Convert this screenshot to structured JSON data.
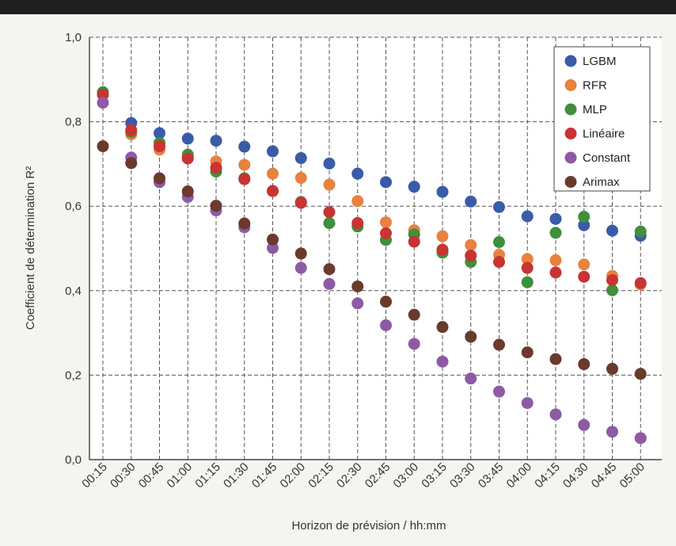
{
  "chart_data": {
    "type": "scatter",
    "xlabel": "Horizon de prévision / hh:mm",
    "ylabel": "Coefficient de détermination R²",
    "categories": [
      "00:15",
      "00:30",
      "00:45",
      "01:00",
      "01:15",
      "01:30",
      "01:45",
      "02:00",
      "02:15",
      "02:30",
      "02:45",
      "03:00",
      "03:15",
      "03:30",
      "03:45",
      "04:00",
      "04:15",
      "04:30",
      "04:45",
      "05:00"
    ],
    "ylim": [
      0.0,
      1.0
    ],
    "yticks": [
      "0,0",
      "0,2",
      "0,4",
      "0,6",
      "0,8",
      "1,0"
    ],
    "ytick_values": [
      0.0,
      0.2,
      0.4,
      0.6,
      0.8,
      1.0
    ],
    "grid": true,
    "legend_position": "top-right",
    "series": [
      {
        "name": "LGBM",
        "color": "#3a5ba8",
        "values": [
          0.868,
          0.797,
          0.773,
          0.76,
          0.755,
          0.741,
          0.73,
          0.714,
          0.701,
          0.677,
          0.657,
          0.646,
          0.634,
          0.611,
          0.598,
          0.576,
          0.57,
          0.555,
          0.542,
          0.53
        ]
      },
      {
        "name": "RFR",
        "color": "#e8823e",
        "values": [
          0.868,
          0.77,
          0.734,
          0.716,
          0.706,
          0.698,
          0.677,
          0.667,
          0.651,
          0.612,
          0.562,
          0.543,
          0.529,
          0.508,
          0.485,
          0.475,
          0.472,
          0.462,
          0.435,
          0.415
        ]
      },
      {
        "name": "MLP",
        "color": "#3f8f3c",
        "values": [
          0.87,
          0.776,
          0.75,
          0.722,
          0.682,
          0.666,
          0.636,
          0.61,
          0.56,
          0.552,
          0.52,
          0.533,
          0.49,
          0.468,
          0.515,
          0.42,
          0.537,
          0.575,
          0.401,
          0.54
        ]
      },
      {
        "name": "Linéaire",
        "color": "#c93333",
        "values": [
          0.864,
          0.78,
          0.742,
          0.713,
          0.691,
          0.664,
          0.636,
          0.608,
          0.586,
          0.56,
          0.536,
          0.516,
          0.497,
          0.483,
          0.468,
          0.454,
          0.443,
          0.433,
          0.425,
          0.418
        ]
      },
      {
        "name": "Constant",
        "color": "#8e5aa6",
        "values": [
          0.845,
          0.715,
          0.657,
          0.622,
          0.59,
          0.55,
          0.501,
          0.454,
          0.416,
          0.37,
          0.318,
          0.274,
          0.232,
          0.192,
          0.161,
          0.134,
          0.107,
          0.082,
          0.066,
          0.051
        ]
      },
      {
        "name": "Arimax",
        "color": "#6a3a2c",
        "values": [
          0.742,
          0.702,
          0.666,
          0.635,
          0.601,
          0.559,
          0.521,
          0.488,
          0.451,
          0.41,
          0.374,
          0.343,
          0.314,
          0.291,
          0.272,
          0.254,
          0.238,
          0.226,
          0.215,
          0.203
        ]
      }
    ]
  }
}
